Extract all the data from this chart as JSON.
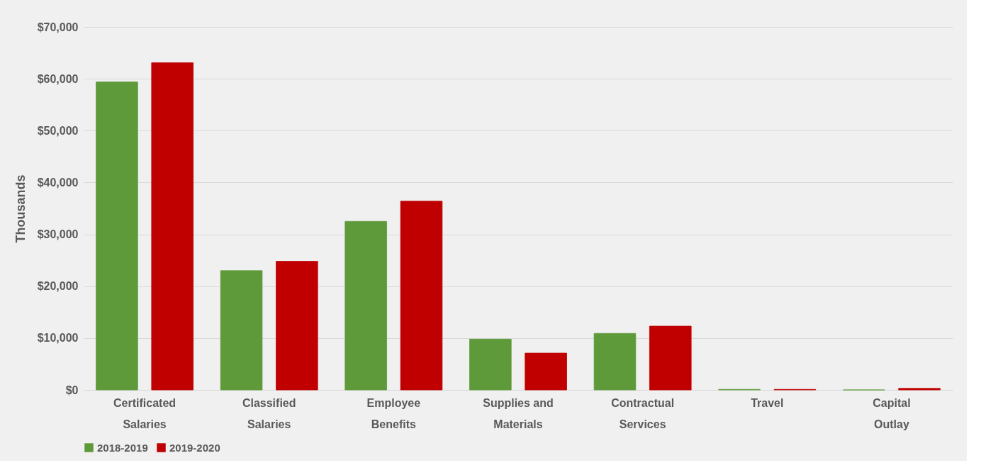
{
  "chart_data": {
    "type": "bar",
    "ylabel": "Thousands",
    "categories": [
      "Certificated Salaries",
      "Classified Salaries",
      "Employee Benefits",
      "Supplies and Materials",
      "Contractual Services",
      "Travel",
      "Capital Outlay"
    ],
    "series": [
      {
        "name": "2018-2019",
        "color": "#5e9a3a",
        "values": [
          59400,
          23000,
          32500,
          9800,
          10900,
          100,
          0
        ]
      },
      {
        "name": "2019-2020",
        "color": "#c00000",
        "values": [
          63100,
          24800,
          36400,
          7100,
          12300,
          100,
          300
        ]
      }
    ],
    "ylim": [
      0,
      70000
    ],
    "yticks": [
      {
        "value": 0,
        "label": "$0"
      },
      {
        "value": 10000,
        "label": "$10,000"
      },
      {
        "value": 20000,
        "label": "$20,000"
      },
      {
        "value": 30000,
        "label": "$30,000"
      },
      {
        "value": 40000,
        "label": "$40,000"
      },
      {
        "value": 50000,
        "label": "$50,000"
      },
      {
        "value": 60000,
        "label": "$60,000"
      },
      {
        "value": 70000,
        "label": "$70,000"
      }
    ],
    "grid": "y",
    "legend": "bottom"
  }
}
